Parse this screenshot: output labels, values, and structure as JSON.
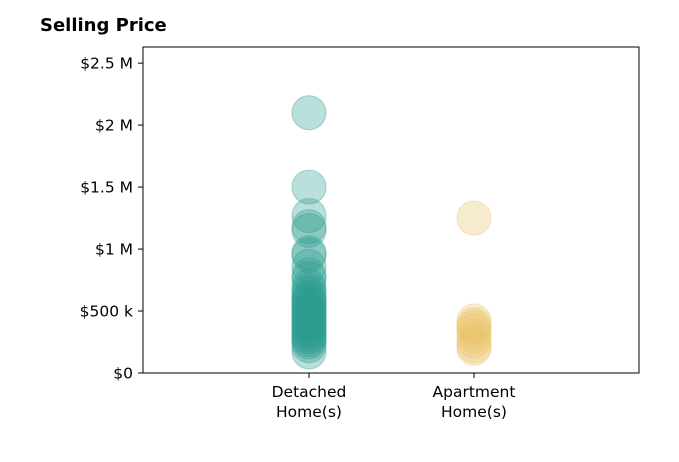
{
  "chart_data": {
    "type": "scatter",
    "title": "Selling Price",
    "xlabel": "",
    "ylabel": "",
    "categories": [
      "Detached\nHome(s)",
      "Apartment\nHome(s)"
    ],
    "ylim": [
      0,
      2630000
    ],
    "yticks": [
      0,
      500000,
      1000000,
      1500000,
      2000000,
      2500000
    ],
    "ytick_labels": [
      "$0",
      "$500 k",
      "$1 M",
      "$1.5 M",
      "$2 M",
      "$2.5 M"
    ],
    "grid": false,
    "series": [
      {
        "category": "Detached\nHome(s)",
        "color": "#2a9d8f",
        "values": [
          2100000,
          1500000,
          1270000,
          1180000,
          1150000,
          970000,
          950000,
          860000,
          790000,
          760000,
          700000,
          670000,
          640000,
          610000,
          590000,
          570000,
          550000,
          530000,
          510000,
          490000,
          470000,
          450000,
          430000,
          410000,
          390000,
          370000,
          350000,
          330000,
          310000,
          290000,
          270000,
          250000,
          220000,
          170000
        ]
      },
      {
        "category": "Apartment\nHome(s)",
        "color": "#e9c46a",
        "values": [
          1250000,
          420000,
          390000,
          370000,
          340000,
          300000,
          260000,
          220000,
          200000
        ]
      }
    ]
  }
}
